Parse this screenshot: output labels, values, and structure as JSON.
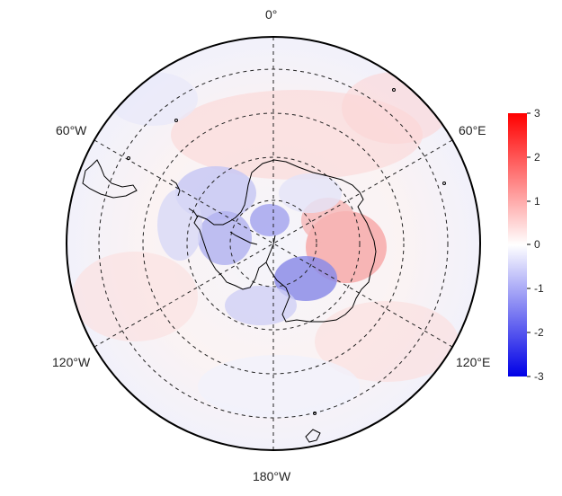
{
  "map": {
    "projection": "south polar stereographic",
    "longitude_labels": {
      "top": "0°",
      "upper_left": "60°W",
      "upper_right": "60°E",
      "lower_left": "120°W",
      "lower_right": "120°E",
      "bottom": "180°W"
    },
    "graticule": "dashed",
    "coastline_color": "#000000"
  },
  "colorbar": {
    "min": -3,
    "max": 3,
    "ticks": [
      "3",
      "2",
      "1",
      "0",
      "-1",
      "-2",
      "-3"
    ],
    "colors": {
      "low": "#0000e6",
      "mid": "#ffffff",
      "high": "#ff0000"
    }
  }
}
